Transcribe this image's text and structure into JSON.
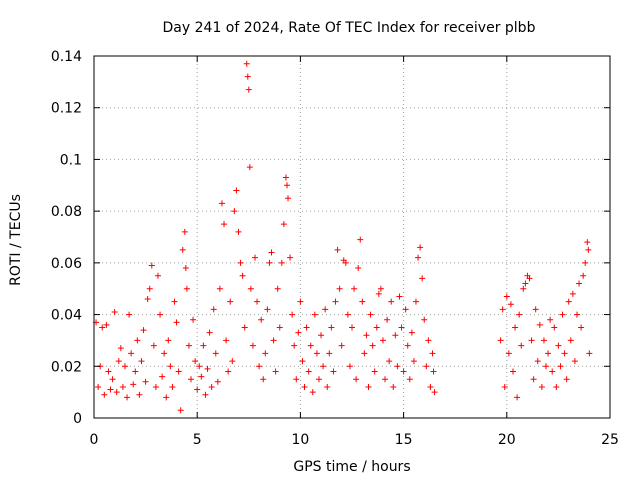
{
  "chart_data": {
    "type": "scatter",
    "title": "Day 241 of 2024, Rate Of TEC Index for receiver plbb",
    "xlabel": "GPS time / hours",
    "ylabel": "ROTI / TECUs",
    "xlim": [
      0,
      25
    ],
    "ylim": [
      0,
      0.14
    ],
    "xticks": [
      0,
      5,
      10,
      15,
      20,
      25
    ],
    "xtick_labels": [
      "0",
      "5",
      "10",
      "15",
      "20",
      "25"
    ],
    "yticks": [
      0,
      0.02,
      0.04,
      0.06,
      0.08,
      0.1,
      0.12,
      0.14
    ],
    "ytick_labels": [
      "0",
      "0.02",
      "0.04",
      "0.06",
      "0.08",
      "0.1",
      "0.12",
      "0.14"
    ],
    "grid": true,
    "marker": "+",
    "marker_color": "#ff0000",
    "series": [
      {
        "name": "ROTI",
        "points": [
          [
            0.1,
            0.037
          ],
          [
            0.2,
            0.012
          ],
          [
            0.3,
            0.02
          ],
          [
            0.4,
            0.035
          ],
          [
            0.5,
            0.009
          ],
          [
            0.6,
            0.036
          ],
          [
            0.7,
            0.018
          ],
          [
            0.8,
            0.011
          ],
          [
            0.9,
            0.015
          ],
          [
            1.0,
            0.041
          ],
          [
            1.1,
            0.01
          ],
          [
            1.2,
            0.022
          ],
          [
            1.3,
            0.027
          ],
          [
            1.4,
            0.012
          ],
          [
            1.5,
            0.02
          ],
          [
            1.6,
            0.008
          ],
          [
            1.7,
            0.04
          ],
          [
            1.8,
            0.025
          ],
          [
            1.9,
            0.013
          ],
          [
            2.0,
            0.018
          ],
          [
            2.1,
            0.03
          ],
          [
            2.2,
            0.009
          ],
          [
            2.3,
            0.022
          ],
          [
            2.4,
            0.034
          ],
          [
            2.5,
            0.014
          ],
          [
            2.6,
            0.046
          ],
          [
            2.7,
            0.05
          ],
          [
            2.8,
            0.059
          ],
          [
            2.9,
            0.028
          ],
          [
            3.0,
            0.012
          ],
          [
            3.1,
            0.055
          ],
          [
            3.2,
            0.04
          ],
          [
            3.3,
            0.016
          ],
          [
            3.4,
            0.025
          ],
          [
            3.5,
            0.008
          ],
          [
            3.6,
            0.03
          ],
          [
            3.7,
            0.02
          ],
          [
            3.8,
            0.012
          ],
          [
            3.9,
            0.045
          ],
          [
            4.0,
            0.037
          ],
          [
            4.1,
            0.018
          ],
          [
            4.2,
            0.003
          ],
          [
            4.3,
            0.065
          ],
          [
            4.4,
            0.072
          ],
          [
            4.45,
            0.058
          ],
          [
            4.5,
            0.05
          ],
          [
            4.6,
            0.028
          ],
          [
            4.7,
            0.015
          ],
          [
            4.8,
            0.038
          ],
          [
            4.9,
            0.022
          ],
          [
            5.0,
            0.011
          ],
          [
            5.1,
            0.02
          ],
          [
            5.2,
            0.016
          ],
          [
            5.3,
            0.028
          ],
          [
            5.4,
            0.009
          ],
          [
            5.5,
            0.019
          ],
          [
            5.6,
            0.033
          ],
          [
            5.7,
            0.012
          ],
          [
            5.8,
            0.042
          ],
          [
            5.9,
            0.025
          ],
          [
            6.0,
            0.014
          ],
          [
            6.1,
            0.05
          ],
          [
            6.2,
            0.083
          ],
          [
            6.3,
            0.075
          ],
          [
            6.4,
            0.03
          ],
          [
            6.5,
            0.018
          ],
          [
            6.6,
            0.045
          ],
          [
            6.7,
            0.022
          ],
          [
            6.8,
            0.08
          ],
          [
            6.9,
            0.088
          ],
          [
            7.0,
            0.072
          ],
          [
            7.1,
            0.06
          ],
          [
            7.2,
            0.055
          ],
          [
            7.3,
            0.035
          ],
          [
            7.4,
            0.137
          ],
          [
            7.45,
            0.132
          ],
          [
            7.5,
            0.127
          ],
          [
            7.55,
            0.097
          ],
          [
            7.6,
            0.05
          ],
          [
            7.7,
            0.028
          ],
          [
            7.8,
            0.062
          ],
          [
            7.9,
            0.045
          ],
          [
            8.0,
            0.02
          ],
          [
            8.1,
            0.038
          ],
          [
            8.2,
            0.015
          ],
          [
            8.3,
            0.025
          ],
          [
            8.4,
            0.042
          ],
          [
            8.5,
            0.06
          ],
          [
            8.6,
            0.064
          ],
          [
            8.7,
            0.03
          ],
          [
            8.8,
            0.018
          ],
          [
            8.9,
            0.05
          ],
          [
            9.0,
            0.035
          ],
          [
            9.1,
            0.06
          ],
          [
            9.2,
            0.075
          ],
          [
            9.3,
            0.093
          ],
          [
            9.35,
            0.09
          ],
          [
            9.4,
            0.085
          ],
          [
            9.5,
            0.062
          ],
          [
            9.6,
            0.04
          ],
          [
            9.7,
            0.028
          ],
          [
            9.8,
            0.015
          ],
          [
            9.9,
            0.033
          ],
          [
            10.0,
            0.045
          ],
          [
            10.1,
            0.022
          ],
          [
            10.2,
            0.012
          ],
          [
            10.3,
            0.035
          ],
          [
            10.4,
            0.018
          ],
          [
            10.5,
            0.028
          ],
          [
            10.6,
            0.01
          ],
          [
            10.7,
            0.04
          ],
          [
            10.8,
            0.025
          ],
          [
            10.9,
            0.015
          ],
          [
            11.0,
            0.032
          ],
          [
            11.1,
            0.02
          ],
          [
            11.2,
            0.042
          ],
          [
            11.3,
            0.012
          ],
          [
            11.4,
            0.025
          ],
          [
            11.5,
            0.035
          ],
          [
            11.6,
            0.018
          ],
          [
            11.7,
            0.045
          ],
          [
            11.8,
            0.065
          ],
          [
            11.9,
            0.05
          ],
          [
            12.0,
            0.028
          ],
          [
            12.1,
            0.061
          ],
          [
            12.2,
            0.06
          ],
          [
            12.3,
            0.04
          ],
          [
            12.4,
            0.02
          ],
          [
            12.5,
            0.035
          ],
          [
            12.6,
            0.05
          ],
          [
            12.7,
            0.015
          ],
          [
            12.8,
            0.058
          ],
          [
            12.9,
            0.069
          ],
          [
            13.0,
            0.045
          ],
          [
            13.1,
            0.025
          ],
          [
            13.2,
            0.032
          ],
          [
            13.3,
            0.012
          ],
          [
            13.4,
            0.04
          ],
          [
            13.5,
            0.028
          ],
          [
            13.6,
            0.018
          ],
          [
            13.7,
            0.035
          ],
          [
            13.8,
            0.048
          ],
          [
            13.9,
            0.05
          ],
          [
            14.0,
            0.03
          ],
          [
            14.1,
            0.015
          ],
          [
            14.2,
            0.038
          ],
          [
            14.3,
            0.022
          ],
          [
            14.4,
            0.045
          ],
          [
            14.5,
            0.012
          ],
          [
            14.6,
            0.032
          ],
          [
            14.7,
            0.02
          ],
          [
            14.8,
            0.047
          ],
          [
            14.9,
            0.035
          ],
          [
            15.0,
            0.018
          ],
          [
            15.1,
            0.042
          ],
          [
            15.2,
            0.028
          ],
          [
            15.3,
            0.015
          ],
          [
            15.4,
            0.033
          ],
          [
            15.5,
            0.022
          ],
          [
            15.6,
            0.045
          ],
          [
            15.7,
            0.062
          ],
          [
            15.8,
            0.066
          ],
          [
            15.9,
            0.054
          ],
          [
            16.0,
            0.038
          ],
          [
            16.1,
            0.02
          ],
          [
            16.2,
            0.03
          ],
          [
            16.3,
            0.012
          ],
          [
            16.4,
            0.025
          ],
          [
            16.45,
            0.018
          ],
          [
            16.5,
            0.01
          ],
          [
            19.7,
            0.03
          ],
          [
            19.8,
            0.042
          ],
          [
            19.9,
            0.012
          ],
          [
            20.0,
            0.047
          ],
          [
            20.1,
            0.025
          ],
          [
            20.2,
            0.044
          ],
          [
            20.3,
            0.018
          ],
          [
            20.4,
            0.035
          ],
          [
            20.5,
            0.008
          ],
          [
            20.6,
            0.04
          ],
          [
            20.7,
            0.028
          ],
          [
            20.8,
            0.05
          ],
          [
            20.9,
            0.052
          ],
          [
            21.0,
            0.055
          ],
          [
            21.1,
            0.054
          ],
          [
            21.2,
            0.03
          ],
          [
            21.3,
            0.015
          ],
          [
            21.4,
            0.042
          ],
          [
            21.5,
            0.022
          ],
          [
            21.6,
            0.036
          ],
          [
            21.7,
            0.012
          ],
          [
            21.8,
            0.03
          ],
          [
            21.9,
            0.02
          ],
          [
            22.0,
            0.025
          ],
          [
            22.1,
            0.038
          ],
          [
            22.2,
            0.018
          ],
          [
            22.3,
            0.035
          ],
          [
            22.4,
            0.012
          ],
          [
            22.5,
            0.028
          ],
          [
            22.6,
            0.02
          ],
          [
            22.7,
            0.04
          ],
          [
            22.8,
            0.025
          ],
          [
            22.9,
            0.015
          ],
          [
            23.0,
            0.045
          ],
          [
            23.1,
            0.03
          ],
          [
            23.2,
            0.048
          ],
          [
            23.3,
            0.022
          ],
          [
            23.4,
            0.04
          ],
          [
            23.5,
            0.052
          ],
          [
            23.6,
            0.035
          ],
          [
            23.7,
            0.055
          ],
          [
            23.8,
            0.06
          ],
          [
            23.9,
            0.068
          ],
          [
            23.95,
            0.065
          ],
          [
            24.0,
            0.025
          ]
        ]
      }
    ]
  }
}
